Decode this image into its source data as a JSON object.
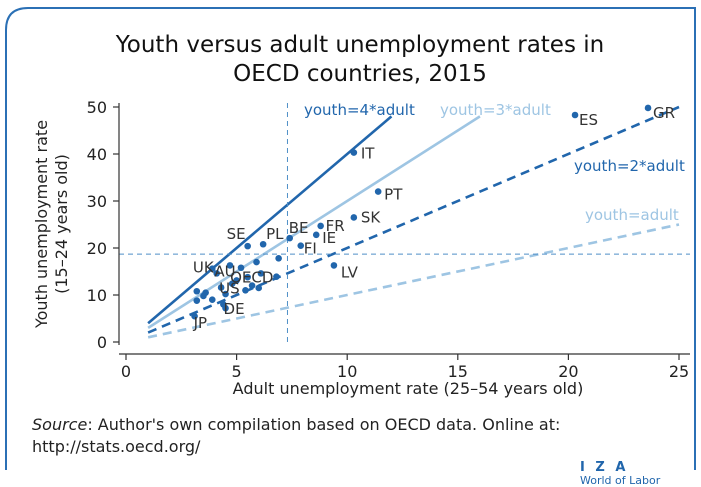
{
  "title_line1": "Youth versus adult unemployment rates in",
  "title_line2": "OECD countries, 2015",
  "source_label": "Source",
  "source_text": ": Author's own compilation based on OECD data. Online at:",
  "source_url": "http://stats.oecd.org/",
  "brand": "I Z A",
  "brand_sub": "World of Labor",
  "colors": {
    "frame": "#2b70b5",
    "dark_blue": "#2166ac",
    "mid_blue": "#4f8fc7",
    "light_blue": "#9ec5e3",
    "axis": "#333333"
  },
  "chart_data": {
    "type": "scatter",
    "title": "Youth versus adult unemployment rates in OECD countries, 2015",
    "xlabel": "Adult unemployment rate (25–54 years old)",
    "ylabel_line1": "Youth unemployment rate",
    "ylabel_line2": "(15–24 years old)",
    "xlim": [
      -0.5,
      25.5
    ],
    "ylim": [
      -1,
      51
    ],
    "xticks": [
      0,
      5,
      10,
      15,
      20,
      25
    ],
    "yticks": [
      0,
      10,
      20,
      30,
      40,
      50
    ],
    "grid": false,
    "reference_lines": [
      {
        "label": "youth=4*adult",
        "slope": 4,
        "x_range": [
          1,
          12
        ],
        "style": "solid",
        "color": "dark"
      },
      {
        "label": "youth=3*adult",
        "slope": 3,
        "x_range": [
          1,
          16
        ],
        "style": "solid",
        "color": "light"
      },
      {
        "label": "youth=2*adult",
        "slope": 2,
        "x_range": [
          1,
          25
        ],
        "style": "dashed",
        "color": "dark"
      },
      {
        "label": "youth=adult",
        "slope": 1,
        "x_range": [
          1,
          25
        ],
        "style": "dashed",
        "color": "light"
      }
    ],
    "mean_lines": {
      "x": 7.3,
      "y": 18.7
    },
    "labeled_points": [
      {
        "label": "ES",
        "x": 20.3,
        "y": 48.3
      },
      {
        "label": "GR",
        "x": 23.6,
        "y": 49.8
      },
      {
        "label": "IT",
        "x": 10.3,
        "y": 40.3
      },
      {
        "label": "PT",
        "x": 11.4,
        "y": 32.0
      },
      {
        "label": "SK",
        "x": 10.3,
        "y": 26.5
      },
      {
        "label": "FR",
        "x": 8.8,
        "y": 24.7
      },
      {
        "label": "BE",
        "x": 7.4,
        "y": 22.1
      },
      {
        "label": "IE",
        "x": 8.6,
        "y": 22.8
      },
      {
        "label": "FI",
        "x": 7.9,
        "y": 20.5
      },
      {
        "label": "LV",
        "x": 9.4,
        "y": 16.3
      },
      {
        "label": "SE",
        "x": 5.5,
        "y": 20.4
      },
      {
        "label": "PL",
        "x": 6.2,
        "y": 20.8
      },
      {
        "label": "UK",
        "x": 4.1,
        "y": 14.6
      },
      {
        "label": "OECD",
        "x": 6.8,
        "y": 13.9
      },
      {
        "label": "AU",
        "x": 5.0,
        "y": 13.1
      },
      {
        "label": "US",
        "x": 4.3,
        "y": 11.6
      },
      {
        "label": "JP",
        "x": 3.1,
        "y": 5.5
      },
      {
        "label": "DE",
        "x": 4.5,
        "y": 7.2
      }
    ],
    "other_points": [
      {
        "x": 3.2,
        "y": 8.8
      },
      {
        "x": 3.6,
        "y": 10.5
      },
      {
        "x": 3.2,
        "y": 10.8
      },
      {
        "x": 3.9,
        "y": 9.0
      },
      {
        "x": 4.5,
        "y": 10.2
      },
      {
        "x": 4.8,
        "y": 12.4
      },
      {
        "x": 5.4,
        "y": 11.0
      },
      {
        "x": 5.7,
        "y": 12.0
      },
      {
        "x": 6.0,
        "y": 11.5
      },
      {
        "x": 5.2,
        "y": 15.8
      },
      {
        "x": 5.9,
        "y": 17.0
      },
      {
        "x": 6.1,
        "y": 14.6
      },
      {
        "x": 4.7,
        "y": 16.3
      },
      {
        "x": 3.9,
        "y": 15.6
      },
      {
        "x": 5.5,
        "y": 13.8
      },
      {
        "x": 6.9,
        "y": 17.8
      },
      {
        "x": 4.4,
        "y": 8.0
      },
      {
        "x": 3.5,
        "y": 9.8
      }
    ]
  }
}
